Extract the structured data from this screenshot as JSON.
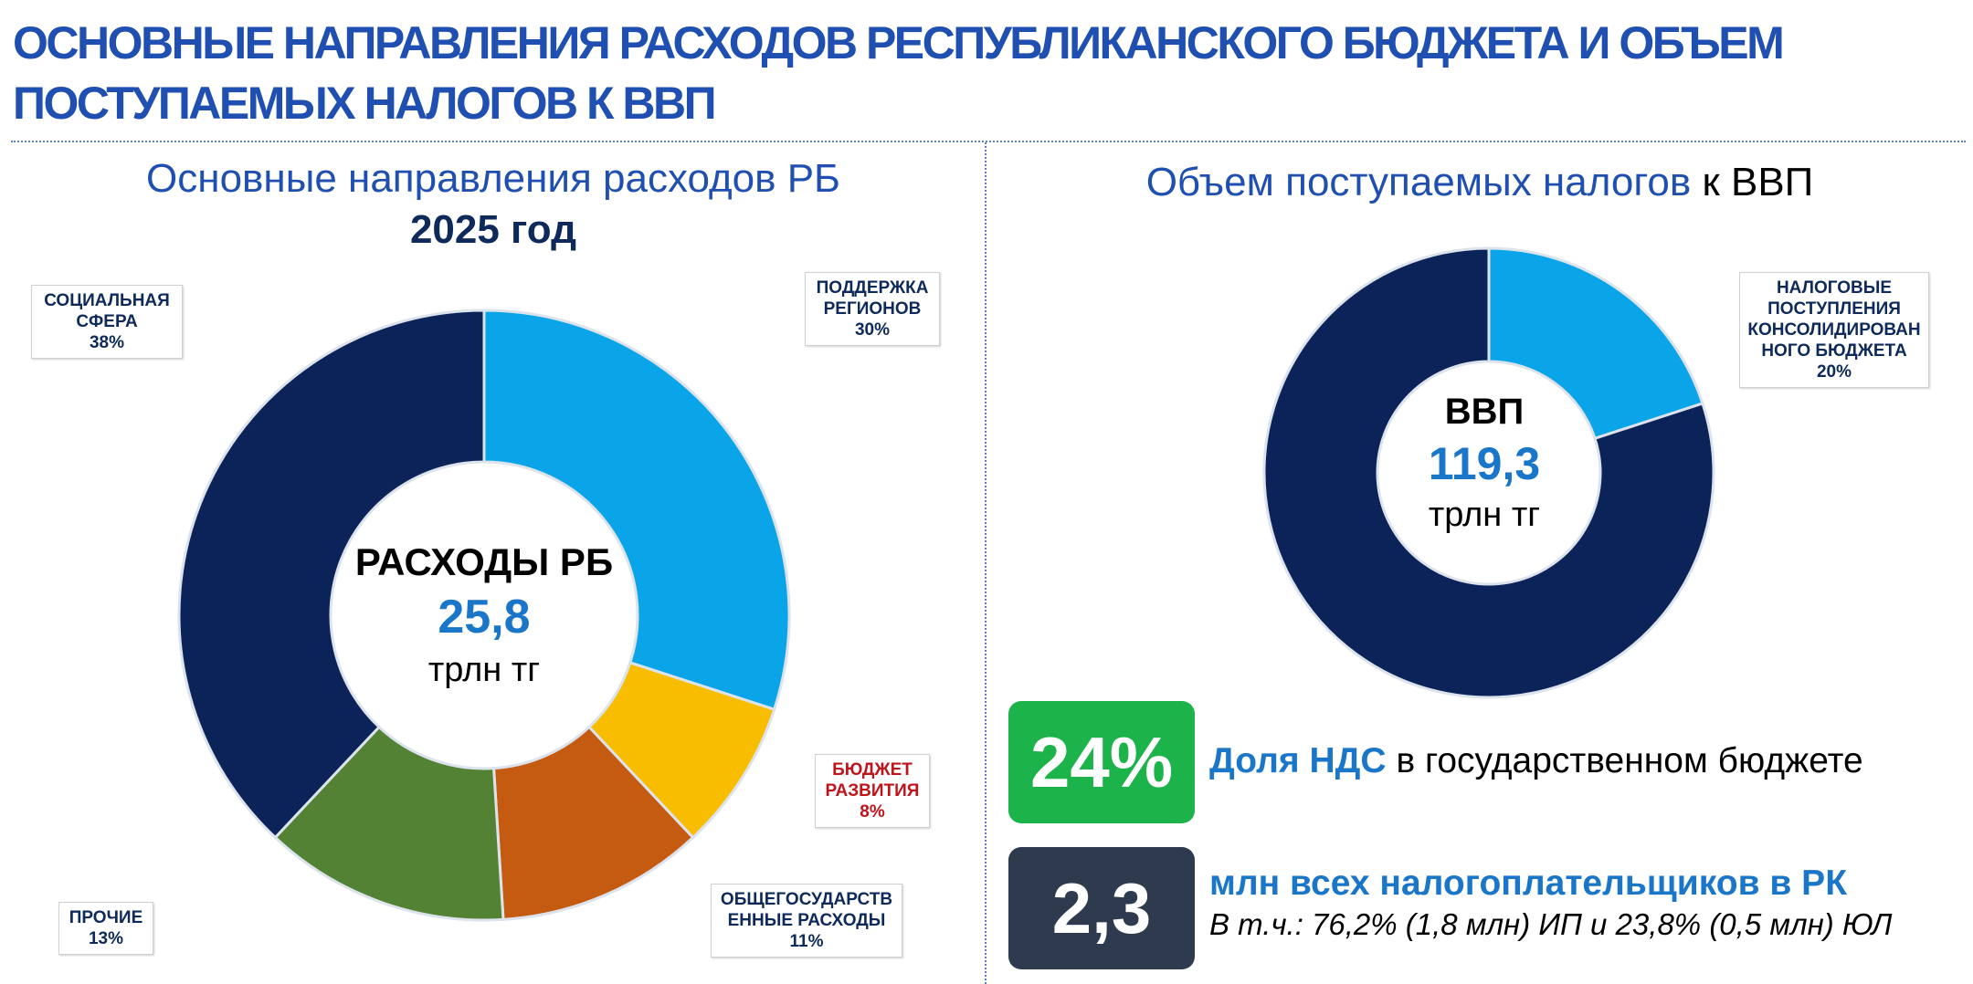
{
  "title": "Основные направления расходов республиканского бюджета и объем поступаемых налогов к ВВП",
  "left_panel": {
    "title": "Основные направления расходов РБ",
    "year": "2025 год",
    "center": {
      "line1": "РАСХОДЫ РБ",
      "value": "25,8",
      "unit": "трлн тг"
    }
  },
  "right_panel": {
    "title_main": "Объем поступаемых налогов",
    "title_suffix": "к ВВП",
    "center": {
      "line1": "ВВП",
      "value": "119,3",
      "unit": "трлн тг"
    }
  },
  "stats": {
    "vat": {
      "value": "24%",
      "label_highlight": "Доля НДС",
      "label_rest": "в государственном бюджете",
      "color": "#1cb34a"
    },
    "taxpayers": {
      "value": "2,3",
      "label": "млн всех налогоплательщиков в РК",
      "sub": "В т.ч.: 76,2% (1,8 млн) ИП и 23,8% (0,5 млн) ЮЛ",
      "color": "#2e3a4d"
    }
  },
  "chart_data": [
    {
      "type": "pie",
      "slices": [
        {
          "label": "Поддержка регионов",
          "value": 30,
          "value_label": "30%",
          "color": "#0aa5e8"
        },
        {
          "label": "Бюджет развития",
          "value": 8,
          "value_label": "8%",
          "color": "#f9bd00"
        },
        {
          "label": "Общегосударственные расходы",
          "value": 11,
          "value_label": "11%",
          "color": "#c55a11"
        },
        {
          "label": "Прочие",
          "value": 13,
          "value_label": "13%",
          "color": "#548235"
        },
        {
          "label": "Социальная сфера",
          "value": 38,
          "value_label": "38%",
          "color": "#0b2359"
        }
      ]
    },
    {
      "type": "pie",
      "slices": [
        {
          "label": "Налоговые поступления консолидированного бюджета",
          "value": 20,
          "value_label": "20%",
          "color": "#0aa5e8"
        },
        {
          "label": "",
          "value": 80,
          "color": "#0b2359"
        }
      ]
    }
  ]
}
